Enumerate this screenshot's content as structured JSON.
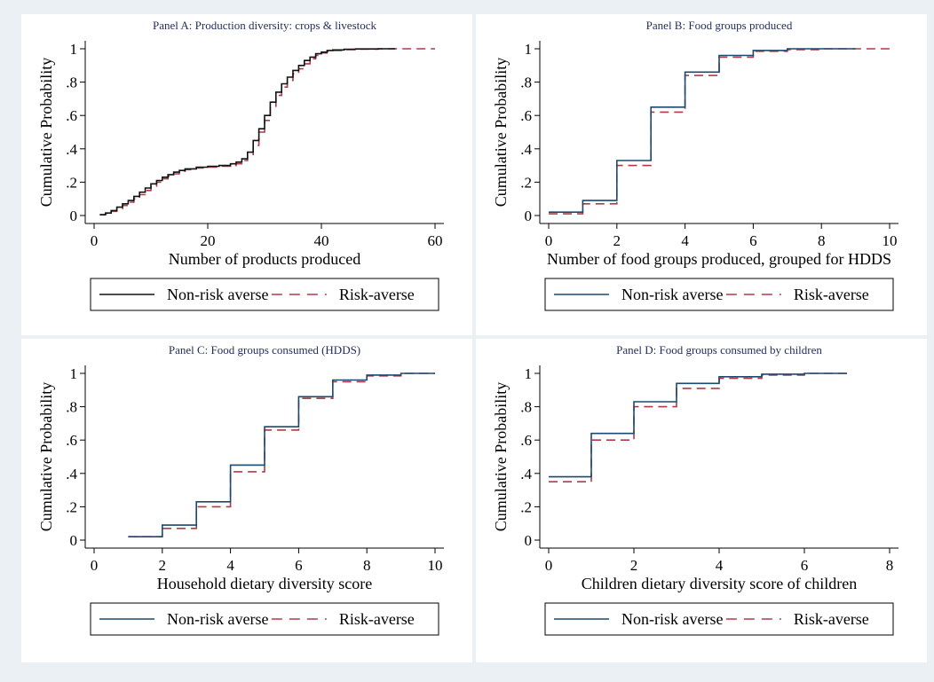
{
  "colors": {
    "page_bg": "#eaf0f3",
    "panel_bg": "#ffffff",
    "title": "#1f2d5a",
    "series_black": "#111111",
    "series_navy": "#1a4a6e",
    "series_red": "#b23a48"
  },
  "chart_data": [
    {
      "type": "line",
      "step": true,
      "title": "Panel A: Production diversity: crops & livestock",
      "xlabel": "Number of products produced",
      "ylabel": "Cumulative Probability",
      "xlim": [
        0,
        60
      ],
      "ylim": [
        0,
        1
      ],
      "xticks": [
        "0",
        "20",
        "40",
        "60"
      ],
      "yticks": [
        "0",
        ".2",
        ".4",
        ".6",
        ".8",
        "1"
      ],
      "legend_position": "bottom",
      "series": [
        {
          "name": "Non-risk averse",
          "color": "#111111",
          "dash": "solid",
          "x": [
            1,
            2,
            3,
            4,
            5,
            6,
            7,
            8,
            9,
            10,
            11,
            12,
            13,
            14,
            15,
            16,
            18,
            20,
            22,
            24,
            25,
            26,
            27,
            28,
            29,
            30,
            31,
            32,
            33,
            34,
            35,
            36,
            37,
            38,
            39,
            40,
            41,
            42,
            44,
            46,
            50,
            53
          ],
          "y": [
            0.005,
            0.015,
            0.03,
            0.05,
            0.07,
            0.09,
            0.115,
            0.14,
            0.165,
            0.19,
            0.21,
            0.23,
            0.245,
            0.26,
            0.27,
            0.28,
            0.29,
            0.295,
            0.3,
            0.31,
            0.32,
            0.34,
            0.38,
            0.45,
            0.52,
            0.6,
            0.68,
            0.74,
            0.79,
            0.83,
            0.87,
            0.9,
            0.93,
            0.95,
            0.97,
            0.98,
            0.99,
            0.993,
            0.997,
            0.999,
            1.0,
            1.0
          ]
        },
        {
          "name": "Risk-averse",
          "color": "#b23a48",
          "dash": "dashed",
          "x": [
            1,
            2,
            3,
            4,
            5,
            6,
            7,
            8,
            9,
            10,
            11,
            12,
            13,
            14,
            15,
            16,
            18,
            20,
            22,
            24,
            25,
            26,
            27,
            28,
            29,
            30,
            31,
            32,
            33,
            34,
            35,
            36,
            37,
            38,
            39,
            40,
            41,
            42,
            44,
            46,
            50,
            60
          ],
          "y": [
            0.004,
            0.012,
            0.025,
            0.04,
            0.06,
            0.08,
            0.1,
            0.125,
            0.15,
            0.175,
            0.2,
            0.22,
            0.235,
            0.25,
            0.265,
            0.275,
            0.285,
            0.29,
            0.295,
            0.3,
            0.31,
            0.33,
            0.36,
            0.42,
            0.5,
            0.57,
            0.65,
            0.72,
            0.77,
            0.81,
            0.85,
            0.88,
            0.91,
            0.94,
            0.96,
            0.975,
            0.985,
            0.99,
            0.995,
            0.998,
            1.0,
            1.0
          ]
        }
      ]
    },
    {
      "type": "line",
      "step": true,
      "title": "Panel B: Food groups produced",
      "xlabel": "Number of food groups produced, grouped for HDDS",
      "ylabel": "Cumulative Probability",
      "xlim": [
        0,
        10
      ],
      "ylim": [
        0,
        1
      ],
      "xticks": [
        "0",
        "2",
        "4",
        "6",
        "8",
        "10"
      ],
      "yticks": [
        "0",
        ".2",
        ".4",
        ".6",
        ".8",
        "1"
      ],
      "legend_position": "bottom",
      "series": [
        {
          "name": "Non-risk averse",
          "color": "#1a4a6e",
          "dash": "solid",
          "x": [
            0,
            1,
            2,
            3,
            4,
            5,
            6,
            7,
            8,
            9
          ],
          "y": [
            0.02,
            0.09,
            0.33,
            0.65,
            0.86,
            0.96,
            0.99,
            1.0,
            1.0,
            1.0
          ]
        },
        {
          "name": "Risk-averse",
          "color": "#b23a48",
          "dash": "dashed",
          "x": [
            0,
            1,
            2,
            3,
            4,
            5,
            6,
            7,
            8,
            10
          ],
          "y": [
            0.01,
            0.07,
            0.3,
            0.62,
            0.84,
            0.95,
            0.985,
            0.995,
            1.0,
            1.0
          ]
        }
      ]
    },
    {
      "type": "line",
      "step": true,
      "title": "Panel C: Food groups consumed (HDDS)",
      "xlabel": "Household dietary diversity score",
      "ylabel": "Cumulative Probability",
      "xlim": [
        0,
        10
      ],
      "ylim": [
        0,
        1
      ],
      "xticks": [
        "0",
        "2",
        "4",
        "6",
        "8",
        "10"
      ],
      "yticks": [
        "0",
        ".2",
        ".4",
        ".6",
        ".8",
        "1"
      ],
      "legend_position": "bottom",
      "series": [
        {
          "name": "Non-risk averse",
          "color": "#1a4a6e",
          "dash": "solid",
          "x": [
            1,
            2,
            3,
            4,
            5,
            6,
            7,
            8,
            9,
            10
          ],
          "y": [
            0.02,
            0.09,
            0.23,
            0.45,
            0.68,
            0.86,
            0.96,
            0.99,
            1.0,
            1.0
          ]
        },
        {
          "name": "Risk-averse",
          "color": "#b23a48",
          "dash": "dashed",
          "x": [
            1,
            2,
            3,
            4,
            5,
            6,
            7,
            8,
            9,
            10
          ],
          "y": [
            0.02,
            0.07,
            0.2,
            0.41,
            0.66,
            0.85,
            0.95,
            0.985,
            1.0,
            1.0
          ]
        }
      ]
    },
    {
      "type": "line",
      "step": true,
      "title": "Panel D: Food groups consumed by children",
      "xlabel": "Children dietary diversity score of children",
      "ylabel": "Cumulative Probability",
      "xlim": [
        0,
        8
      ],
      "ylim": [
        0,
        1
      ],
      "xticks": [
        "0",
        "2",
        "4",
        "6",
        "8"
      ],
      "yticks": [
        "0",
        ".2",
        ".4",
        ".6",
        ".8",
        "1"
      ],
      "legend_position": "bottom",
      "series": [
        {
          "name": "Non-risk averse",
          "color": "#1a4a6e",
          "dash": "solid",
          "x": [
            0,
            1,
            2,
            3,
            4,
            5,
            6,
            7
          ],
          "y": [
            0.38,
            0.64,
            0.83,
            0.94,
            0.98,
            0.995,
            1.0,
            1.0
          ]
        },
        {
          "name": "Risk-averse",
          "color": "#b23a48",
          "dash": "dashed",
          "x": [
            0,
            1,
            2,
            3,
            4,
            5,
            6,
            7
          ],
          "y": [
            0.35,
            0.6,
            0.8,
            0.91,
            0.97,
            0.99,
            1.0,
            1.0
          ]
        }
      ]
    }
  ]
}
